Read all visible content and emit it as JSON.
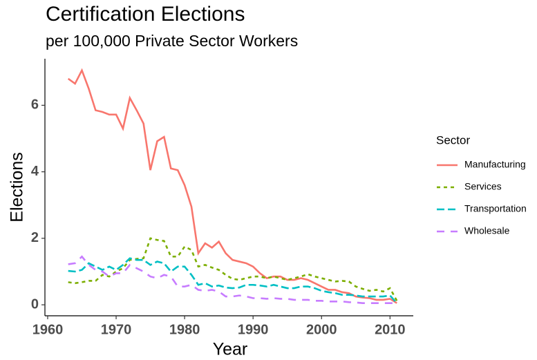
{
  "chart_data": {
    "type": "line",
    "title": "Certification Elections",
    "subtitle": "per 100,000 Private Sector Workers",
    "x_label": "Year",
    "y_label": "Elections",
    "legend_title": "Sector",
    "x": [
      1963,
      1964,
      1965,
      1966,
      1967,
      1968,
      1969,
      1970,
      1971,
      1972,
      1973,
      1974,
      1975,
      1976,
      1977,
      1978,
      1979,
      1980,
      1981,
      1982,
      1983,
      1984,
      1985,
      1986,
      1987,
      1988,
      1989,
      1990,
      1991,
      1992,
      1993,
      1994,
      1995,
      1996,
      1997,
      1998,
      1999,
      2000,
      2001,
      2002,
      2003,
      2004,
      2005,
      2006,
      2007,
      2008,
      2009,
      2010,
      2011
    ],
    "series": [
      {
        "name": "Manufacturing",
        "color": "#F8766D",
        "values": [
          6.8,
          6.65,
          7.05,
          6.5,
          5.85,
          5.8,
          5.72,
          5.72,
          5.3,
          6.22,
          5.85,
          5.45,
          4.05,
          4.92,
          5.05,
          4.1,
          4.05,
          3.6,
          2.95,
          1.55,
          1.85,
          1.72,
          1.9,
          1.55,
          1.35,
          1.3,
          1.25,
          1.15,
          0.95,
          0.8,
          0.85,
          0.85,
          0.75,
          0.75,
          0.8,
          0.75,
          0.65,
          0.55,
          0.45,
          0.45,
          0.38,
          0.35,
          0.25,
          0.22,
          0.2,
          0.15,
          0.15,
          0.18,
          0.05
        ]
      },
      {
        "name": "Services",
        "color": "#7CAE00",
        "values": [
          0.68,
          0.65,
          0.68,
          0.72,
          0.72,
          0.9,
          0.85,
          1.0,
          1.1,
          1.35,
          1.38,
          1.4,
          2.0,
          1.95,
          1.92,
          1.45,
          1.45,
          1.75,
          1.65,
          1.15,
          1.2,
          1.12,
          1.05,
          0.9,
          0.78,
          0.75,
          0.8,
          0.85,
          0.85,
          0.8,
          0.85,
          0.8,
          0.75,
          0.8,
          0.85,
          0.92,
          0.85,
          0.8,
          0.75,
          0.7,
          0.72,
          0.7,
          0.55,
          0.48,
          0.42,
          0.45,
          0.4,
          0.5,
          0.12
        ]
      },
      {
        "name": "Transportation",
        "color": "#00BFC4",
        "values": [
          1.02,
          1.0,
          1.05,
          1.25,
          1.15,
          1.05,
          1.15,
          1.05,
          1.2,
          1.4,
          1.35,
          1.35,
          1.2,
          1.3,
          1.25,
          1.0,
          1.15,
          1.15,
          0.9,
          0.6,
          0.65,
          0.55,
          0.58,
          0.52,
          0.5,
          0.52,
          0.6,
          0.6,
          0.58,
          0.55,
          0.6,
          0.55,
          0.5,
          0.5,
          0.55,
          0.55,
          0.5,
          0.42,
          0.38,
          0.35,
          0.3,
          0.3,
          0.28,
          0.25,
          0.25,
          0.25,
          0.25,
          0.28,
          0.05
        ]
      },
      {
        "name": "Wholesale",
        "color": "#C77CFF",
        "values": [
          1.22,
          1.25,
          1.45,
          1.2,
          1.05,
          1.0,
          0.85,
          0.95,
          0.95,
          1.2,
          1.1,
          1.0,
          0.85,
          0.8,
          0.9,
          0.85,
          0.55,
          0.55,
          0.6,
          0.45,
          0.42,
          0.45,
          0.4,
          0.25,
          0.25,
          0.28,
          0.25,
          0.2,
          0.2,
          0.18,
          0.2,
          0.18,
          0.18,
          0.15,
          0.15,
          0.15,
          0.12,
          0.12,
          0.1,
          0.1,
          0.1,
          0.08,
          0.07,
          0.05,
          0.05,
          0.05,
          0.05,
          0.05,
          0.05
        ]
      }
    ],
    "xlim": [
      1959.6,
      2013.4
    ],
    "xticks": [
      1960,
      1970,
      1980,
      1990,
      2000,
      2010
    ],
    "ylim": [
      -0.33,
      7.4
    ],
    "yticks": [
      0,
      2,
      4,
      6
    ],
    "grid": false
  }
}
